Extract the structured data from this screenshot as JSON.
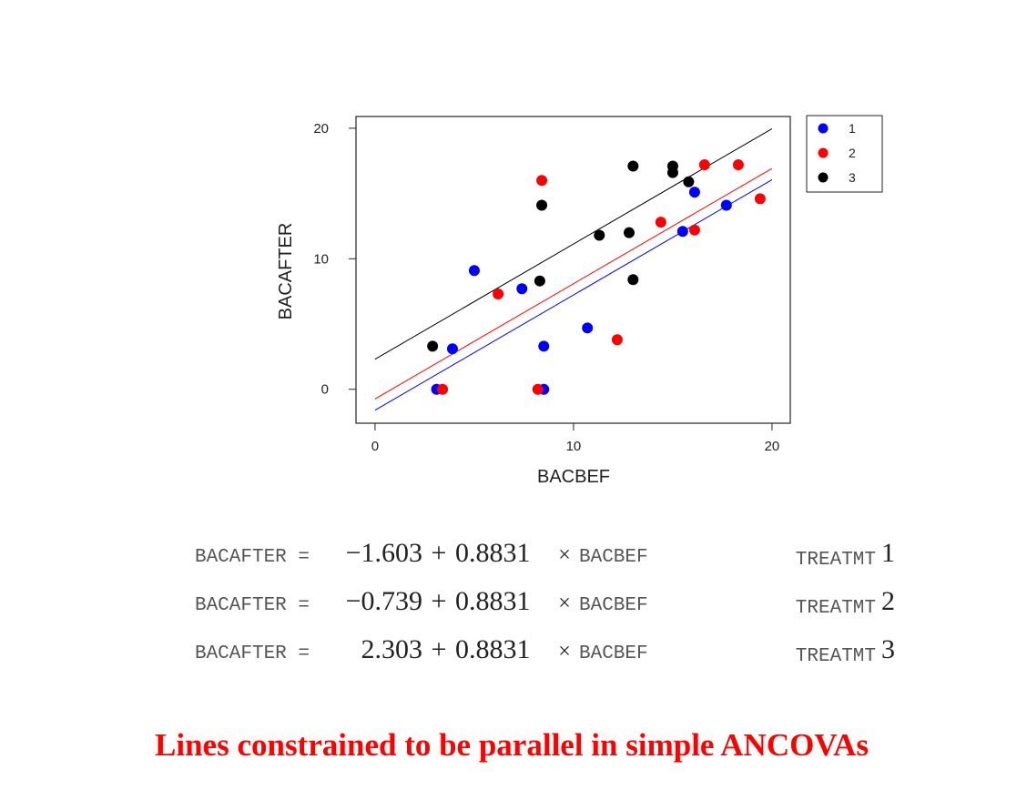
{
  "chart_data": {
    "type": "scatter",
    "xlabel": "BACBEF",
    "ylabel": "BACAFTER",
    "xlim": [
      -0.96,
      20.92
    ],
    "ylim": [
      -2.6,
      20.9
    ],
    "xticks": [
      0,
      10,
      20
    ],
    "yticks": [
      0,
      10,
      20
    ],
    "legend": "outside-top-right",
    "equation_lhs": "BACAFTER =",
    "equation_plus": "+",
    "equation_times": "×",
    "equation_var": "BACBEF",
    "equation_group_label": "TREATMT",
    "footnote": "Lines constrained to be parallel in simple ANCOVAs",
    "series": [
      {
        "name": "1",
        "color": "#0000ff",
        "intercept": {
          "value": -1.603,
          "label": "−1.603"
        },
        "slope": 0.8831,
        "x": [
          3.1,
          3.9,
          5.0,
          7.4,
          8.5,
          8.5,
          10.7,
          15.5,
          16.1,
          17.7
        ],
        "values": [
          0,
          3.1,
          9.1,
          7.7,
          3.3,
          0,
          4.7,
          12.1,
          15.1,
          14.1
        ]
      },
      {
        "name": "2",
        "color": "#ff0000",
        "intercept": {
          "value": -0.739,
          "label": "−0.739"
        },
        "slope": 0.8831,
        "x": [
          3.4,
          6.2,
          8.2,
          8.4,
          12.2,
          14.4,
          16.1,
          16.6,
          18.3,
          19.4
        ],
        "values": [
          0,
          7.3,
          0,
          16.0,
          3.8,
          12.8,
          12.2,
          17.2,
          17.2,
          14.6
        ]
      },
      {
        "name": "3",
        "color": "#000000",
        "intercept": 2.303,
        "slope": 0.8831,
        "x": [
          2.9,
          8.3,
          8.4,
          11.3,
          12.8,
          13.0,
          13.0,
          15.0,
          15.0,
          15.8
        ],
        "values": [
          3.3,
          8.3,
          14.1,
          11.8,
          12.0,
          17.1,
          8.4,
          17.1,
          16.6,
          15.9
        ]
      }
    ]
  }
}
